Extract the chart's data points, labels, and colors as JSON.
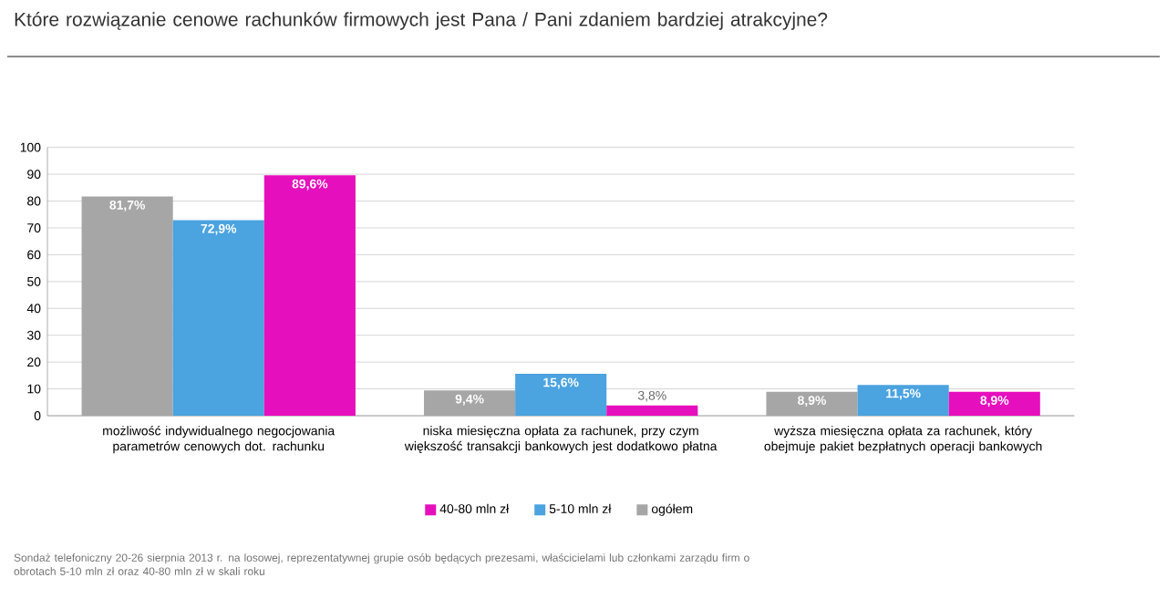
{
  "chart_data": {
    "type": "bar",
    "title": "Które rozwiązanie cenowe rachunków firmowych jest Pana / Pani zdaniem bardziej atrakcyjne?",
    "categories": [
      "możliwość indywidualnego negocjowania parametrów cenowych dot. rachunku",
      "niska miesięczna opłata za rachunek, przy czym większość transakcji bankowych jest dodatkowo płatna",
      "wyższa miesięczna opłata za rachunek, który obejmuje pakiet bezpłatnych operacji bankowych"
    ],
    "series": [
      {
        "name": "ogółem",
        "color": "#a6a6a6",
        "values": [
          81.7,
          9.4,
          8.9
        ],
        "value_labels": [
          "81,7%",
          "9,4%",
          "8,9%"
        ]
      },
      {
        "name": "5-10 mln zł",
        "color": "#4ba3e0",
        "values": [
          72.9,
          15.6,
          11.5
        ],
        "value_labels": [
          "72,9%",
          "15,6%",
          "11,5%"
        ]
      },
      {
        "name": "40-80 mln zł",
        "color": "#e60fbe",
        "values": [
          89.6,
          3.8,
          8.9
        ],
        "value_labels": [
          "89,6%",
          "3,8%",
          "8,9%"
        ]
      }
    ],
    "ylim": [
      0,
      100
    ],
    "yticks": [
      0,
      10,
      20,
      30,
      40,
      50,
      60,
      70,
      80,
      90,
      100
    ],
    "grid": "y",
    "legend": "bottom",
    "annotations": [
      "Sondaż telefoniczny 20-26 sierpnia 2013 r. na losowej, reprezentatywnej grupie osób będących prezesami, właścicielami lub członkami zarządu firm o obrotach 5-10 mln zł oraz 40-80 mln zł w skali roku"
    ]
  }
}
